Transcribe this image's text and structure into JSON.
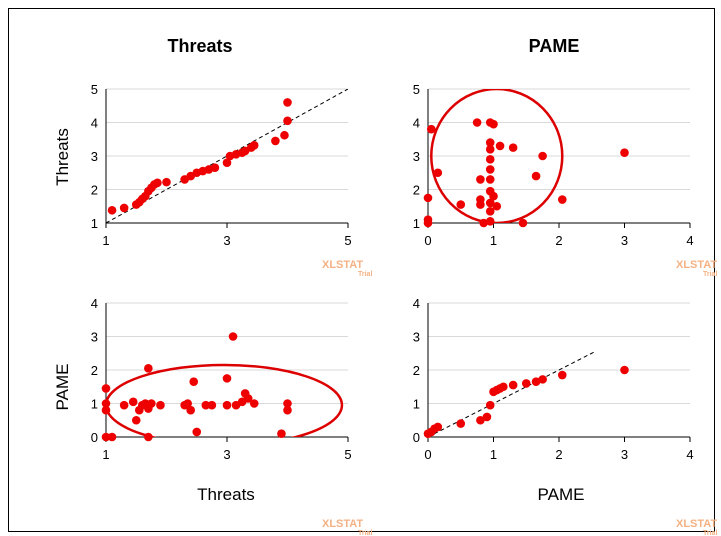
{
  "column_titles": [
    "Threats",
    "PAME"
  ],
  "row_labels": [
    "Threats",
    "PAME"
  ],
  "x_axis_labels": [
    "Threats",
    "PAME"
  ],
  "watermark": {
    "text": "XLSTAT",
    "sub": "Trial"
  },
  "colors": {
    "points": "#ee0000",
    "ellipse": "#dd0000",
    "reference_line": "#000000",
    "grid": "#d9d9d9",
    "watermark": "#f4b183"
  },
  "chart_data": [
    {
      "type": "scatter",
      "panel": "Threats vs Threats (Q-Q)",
      "title": "Threats",
      "xlabel": "",
      "ylabel": "Threats",
      "xlim": [
        1,
        5
      ],
      "ylim": [
        1,
        5
      ],
      "xticks": [
        1,
        3,
        5
      ],
      "yticks": [
        1,
        2,
        3,
        4,
        5
      ],
      "reference_line": [
        [
          1,
          1
        ],
        [
          5,
          5
        ]
      ],
      "points": [
        [
          1.1,
          1.38
        ],
        [
          1.3,
          1.45
        ],
        [
          1.5,
          1.55
        ],
        [
          1.55,
          1.62
        ],
        [
          1.6,
          1.72
        ],
        [
          1.65,
          1.8
        ],
        [
          1.7,
          1.95
        ],
        [
          1.75,
          2.05
        ],
        [
          1.8,
          2.15
        ],
        [
          1.85,
          2.2
        ],
        [
          2.0,
          2.22
        ],
        [
          2.3,
          2.3
        ],
        [
          2.4,
          2.4
        ],
        [
          2.5,
          2.5
        ],
        [
          2.6,
          2.55
        ],
        [
          2.7,
          2.6
        ],
        [
          2.8,
          2.65
        ],
        [
          3.0,
          2.8
        ],
        [
          3.05,
          3.0
        ],
        [
          3.15,
          3.05
        ],
        [
          3.25,
          3.1
        ],
        [
          3.3,
          3.15
        ],
        [
          3.4,
          3.25
        ],
        [
          3.45,
          3.32
        ],
        [
          3.8,
          3.45
        ],
        [
          3.95,
          3.62
        ],
        [
          4.0,
          4.05
        ],
        [
          4.0,
          4.6
        ]
      ]
    },
    {
      "type": "scatter",
      "panel": "PAME vs Threats",
      "title": "PAME",
      "xlabel": "",
      "ylabel": "",
      "xlim": [
        0,
        4
      ],
      "ylim": [
        1,
        5
      ],
      "xticks": [
        0,
        1,
        2,
        3,
        4
      ],
      "yticks": [
        1,
        2,
        3,
        4,
        5
      ],
      "ellipse": {
        "cx": 1.05,
        "cy": 3.0,
        "rx": 1.0,
        "ry": 2.0
      },
      "points": [
        [
          0.05,
          3.8
        ],
        [
          0.15,
          2.5
        ],
        [
          0.0,
          1.75
        ],
        [
          0.0,
          1.1
        ],
        [
          0.0,
          1.0
        ],
        [
          0.5,
          1.55
        ],
        [
          0.75,
          4.0
        ],
        [
          0.8,
          2.3
        ],
        [
          0.8,
          1.7
        ],
        [
          0.8,
          1.55
        ],
        [
          0.85,
          1.0
        ],
        [
          0.95,
          4.0
        ],
        [
          1.0,
          3.95
        ],
        [
          0.95,
          3.4
        ],
        [
          0.95,
          3.2
        ],
        [
          0.95,
          2.9
        ],
        [
          0.95,
          2.6
        ],
        [
          0.95,
          2.3
        ],
        [
          0.95,
          1.95
        ],
        [
          0.95,
          1.6
        ],
        [
          0.95,
          1.35
        ],
        [
          0.95,
          1.05
        ],
        [
          1.0,
          1.8
        ],
        [
          1.05,
          1.5
        ],
        [
          1.1,
          3.3
        ],
        [
          1.3,
          3.25
        ],
        [
          1.45,
          1.0
        ],
        [
          1.65,
          2.4
        ],
        [
          1.75,
          3.0
        ],
        [
          2.05,
          1.7
        ],
        [
          3.0,
          3.1
        ]
      ]
    },
    {
      "type": "scatter",
      "panel": "Threats vs PAME",
      "title": "",
      "xlabel": "Threats",
      "ylabel": "PAME",
      "xlim": [
        1,
        5
      ],
      "ylim": [
        0,
        4
      ],
      "xticks": [
        1,
        3,
        5
      ],
      "yticks": [
        0,
        1,
        2,
        3,
        4
      ],
      "ellipse": {
        "cx": 2.95,
        "cy": 0.95,
        "rx": 1.95,
        "ry": 1.2
      },
      "points": [
        [
          1.0,
          1.45
        ],
        [
          1.0,
          1.0
        ],
        [
          1.0,
          0.8
        ],
        [
          1.0,
          0.0
        ],
        [
          1.1,
          0.0
        ],
        [
          1.3,
          0.95
        ],
        [
          1.45,
          1.05
        ],
        [
          1.5,
          0.5
        ],
        [
          1.55,
          0.8
        ],
        [
          1.6,
          0.95
        ],
        [
          1.65,
          1.0
        ],
        [
          1.7,
          2.05
        ],
        [
          1.7,
          0.85
        ],
        [
          1.75,
          1.0
        ],
        [
          1.7,
          0.0
        ],
        [
          1.9,
          0.95
        ],
        [
          2.3,
          0.95
        ],
        [
          2.35,
          1.0
        ],
        [
          2.4,
          0.8
        ],
        [
          2.45,
          1.65
        ],
        [
          2.5,
          0.15
        ],
        [
          2.65,
          0.95
        ],
        [
          2.75,
          0.95
        ],
        [
          3.0,
          1.75
        ],
        [
          3.0,
          0.95
        ],
        [
          3.1,
          3.0
        ],
        [
          3.15,
          0.95
        ],
        [
          3.25,
          1.05
        ],
        [
          3.3,
          1.3
        ],
        [
          3.35,
          1.15
        ],
        [
          3.45,
          1.0
        ],
        [
          3.9,
          0.1
        ],
        [
          4.0,
          1.0
        ],
        [
          4.0,
          0.8
        ]
      ]
    },
    {
      "type": "scatter",
      "panel": "PAME vs PAME (Q-Q)",
      "title": "",
      "xlabel": "PAME",
      "ylabel": "",
      "xlim": [
        0,
        4
      ],
      "ylim": [
        0,
        4
      ],
      "xticks": [
        0,
        1,
        2,
        3,
        4
      ],
      "yticks": [
        0,
        1,
        2,
        3,
        4
      ],
      "reference_line": [
        [
          0,
          0
        ],
        [
          2.55,
          2.55
        ]
      ],
      "points": [
        [
          0.0,
          0.1
        ],
        [
          0.05,
          0.15
        ],
        [
          0.1,
          0.25
        ],
        [
          0.15,
          0.3
        ],
        [
          0.5,
          0.4
        ],
        [
          0.8,
          0.5
        ],
        [
          0.9,
          0.6
        ],
        [
          0.95,
          0.95
        ],
        [
          1.0,
          1.35
        ],
        [
          1.05,
          1.4
        ],
        [
          1.1,
          1.45
        ],
        [
          1.15,
          1.5
        ],
        [
          1.3,
          1.55
        ],
        [
          1.5,
          1.6
        ],
        [
          1.65,
          1.65
        ],
        [
          1.75,
          1.72
        ],
        [
          2.05,
          1.85
        ],
        [
          3.0,
          2.0
        ]
      ]
    }
  ]
}
